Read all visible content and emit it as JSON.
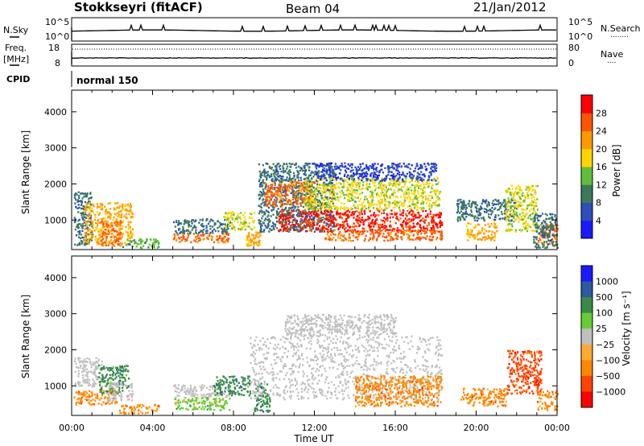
{
  "header": {
    "station": "Stokkseyri (fitACF)",
    "beam": "Beam 04",
    "date": "21/Jan/2012"
  },
  "noise_panel": {
    "left_label": "N.Sky",
    "left_ticks": [
      "10^5",
      "10^0"
    ],
    "right_ticks": [
      "10^5",
      "10^0"
    ],
    "right_label": "N.Search",
    "right_legend_line": "........"
  },
  "freq_panel": {
    "left_label_line1": "Freq.",
    "left_label_line2": "[MHz]",
    "left_ticks": [
      "18",
      "8"
    ],
    "right_ticks": [
      "80",
      "0"
    ],
    "right_label": "Nave",
    "right_legend_line": "...."
  },
  "cpid_panel": {
    "label": "CPID",
    "mode_text": "normal 150"
  },
  "colors": {
    "power_scale": [
      "#1a1aff",
      "#2e4fb8",
      "#3a7a5a",
      "#5fbf3a",
      "#ffd400",
      "#ff9900",
      "#ff5500",
      "#ff0000"
    ],
    "velocity_scale": [
      "#ff0000",
      "#ff4400",
      "#ff8800",
      "#ffaa33",
      "#c0c0c0",
      "#66cc33",
      "#3a8a4a",
      "#2a5aa0",
      "#1a1aff"
    ],
    "ground_scatter": "#c0c0c0"
  },
  "chart_data": [
    {
      "type": "heatmap",
      "name": "power",
      "ylabel": "Slant Range [km]",
      "yticks": [
        "1000",
        "2000",
        "3000",
        "4000"
      ],
      "ylim": [
        180,
        4600
      ],
      "xlim_hours": [
        0,
        24
      ],
      "colorbar_label": "Power [dB]",
      "colorbar_ticks": [
        "4",
        "8",
        "12",
        "16",
        "20",
        "24",
        "28"
      ],
      "colorbar_range": [
        0,
        30
      ],
      "regions": [
        {
          "t0": 0.1,
          "t1": 1.0,
          "r0": 300,
          "r1": 1800,
          "level": 8
        },
        {
          "t0": 0.6,
          "t1": 3.0,
          "r0": 350,
          "r1": 1500,
          "level": 22
        },
        {
          "t0": 1.4,
          "t1": 2.4,
          "r0": 300,
          "r1": 1000,
          "level": 26
        },
        {
          "t0": 2.5,
          "t1": 4.3,
          "r0": 250,
          "r1": 500,
          "level": 14
        },
        {
          "t0": 5.0,
          "t1": 7.8,
          "r0": 400,
          "r1": 650,
          "level": 24
        },
        {
          "t0": 5.0,
          "t1": 7.8,
          "r0": 650,
          "r1": 1050,
          "level": 10
        },
        {
          "t0": 7.5,
          "t1": 9.0,
          "r0": 750,
          "r1": 1250,
          "level": 18
        },
        {
          "t0": 8.6,
          "t1": 9.3,
          "r0": 300,
          "r1": 700,
          "level": 22
        },
        {
          "t0": 9.2,
          "t1": 13.0,
          "r0": 700,
          "r1": 2600,
          "level": 8
        },
        {
          "t0": 9.5,
          "t1": 12.0,
          "r0": 1400,
          "r1": 2100,
          "level": 26
        },
        {
          "t0": 10.2,
          "t1": 18.3,
          "r0": 700,
          "r1": 1300,
          "level": 28
        },
        {
          "t0": 11.5,
          "t1": 18.2,
          "r0": 1300,
          "r1": 2200,
          "level": 16
        },
        {
          "t0": 12.0,
          "t1": 18.0,
          "r0": 2100,
          "r1": 2600,
          "level": 6
        },
        {
          "t0": 12.5,
          "t1": 18.3,
          "r0": 450,
          "r1": 750,
          "level": 24
        },
        {
          "t0": 19.5,
          "t1": 21.0,
          "r0": 450,
          "r1": 950,
          "level": 20
        },
        {
          "t0": 19.0,
          "t1": 22.0,
          "r0": 1000,
          "r1": 1600,
          "level": 8
        },
        {
          "t0": 21.4,
          "t1": 23.0,
          "r0": 700,
          "r1": 2000,
          "level": 16
        },
        {
          "t0": 23.0,
          "t1": 24.0,
          "r0": 350,
          "r1": 900,
          "level": 24
        },
        {
          "t0": 22.8,
          "t1": 24.0,
          "r0": 250,
          "r1": 1200,
          "level": 8
        }
      ]
    },
    {
      "type": "heatmap",
      "name": "velocity",
      "ylabel": "Slant Range [km]",
      "yticks": [
        "1000",
        "2000",
        "3000",
        "4000"
      ],
      "ylim": [
        180,
        4600
      ],
      "xlim_hours": [
        0,
        24
      ],
      "colorbar_label": "Velocity [m s⁻¹]",
      "colorbar_ticks": [
        "1000",
        "500",
        "100",
        "25",
        "−25",
        "−100",
        "−500",
        "−1000"
      ],
      "regions": [
        {
          "t0": 0.1,
          "t1": 1.5,
          "r0": 1000,
          "r1": 1800,
          "level": "g"
        },
        {
          "t0": 0.1,
          "t1": 2.2,
          "r0": 500,
          "r1": 900,
          "level": "n300"
        },
        {
          "t0": 1.3,
          "t1": 2.8,
          "r0": 800,
          "r1": 1600,
          "level": "p300"
        },
        {
          "t0": 1.8,
          "t1": 3.0,
          "r0": 600,
          "r1": 1100,
          "level": "g"
        },
        {
          "t0": 2.3,
          "t1": 4.3,
          "r0": 250,
          "r1": 500,
          "level": "n200"
        },
        {
          "t0": 5.0,
          "t1": 7.8,
          "r0": 350,
          "r1": 700,
          "level": "p100"
        },
        {
          "t0": 5.0,
          "t1": 7.8,
          "r0": 700,
          "r1": 1050,
          "level": "g"
        },
        {
          "t0": 7.0,
          "t1": 8.8,
          "r0": 750,
          "r1": 1300,
          "level": "p300"
        },
        {
          "t0": 9.0,
          "t1": 9.8,
          "r0": 300,
          "r1": 1100,
          "level": "p150"
        },
        {
          "t0": 8.8,
          "t1": 18.3,
          "r0": 650,
          "r1": 2400,
          "level": "g"
        },
        {
          "t0": 10.5,
          "t1": 16.0,
          "r0": 2400,
          "r1": 3000,
          "level": "g"
        },
        {
          "t0": 14.0,
          "t1": 18.3,
          "r0": 450,
          "r1": 1300,
          "level": "n200"
        },
        {
          "t0": 19.2,
          "t1": 21.5,
          "r0": 450,
          "r1": 950,
          "level": "n300"
        },
        {
          "t0": 21.5,
          "t1": 23.2,
          "r0": 800,
          "r1": 2000,
          "level": "n700"
        },
        {
          "t0": 23.0,
          "t1": 24.0,
          "r0": 350,
          "r1": 900,
          "level": "n400"
        }
      ]
    }
  ],
  "x_axis": {
    "ticks": [
      "00:00",
      "04:00",
      "08:00",
      "12:00",
      "16:00",
      "20:00",
      "00:00"
    ],
    "label": "Time UT"
  }
}
